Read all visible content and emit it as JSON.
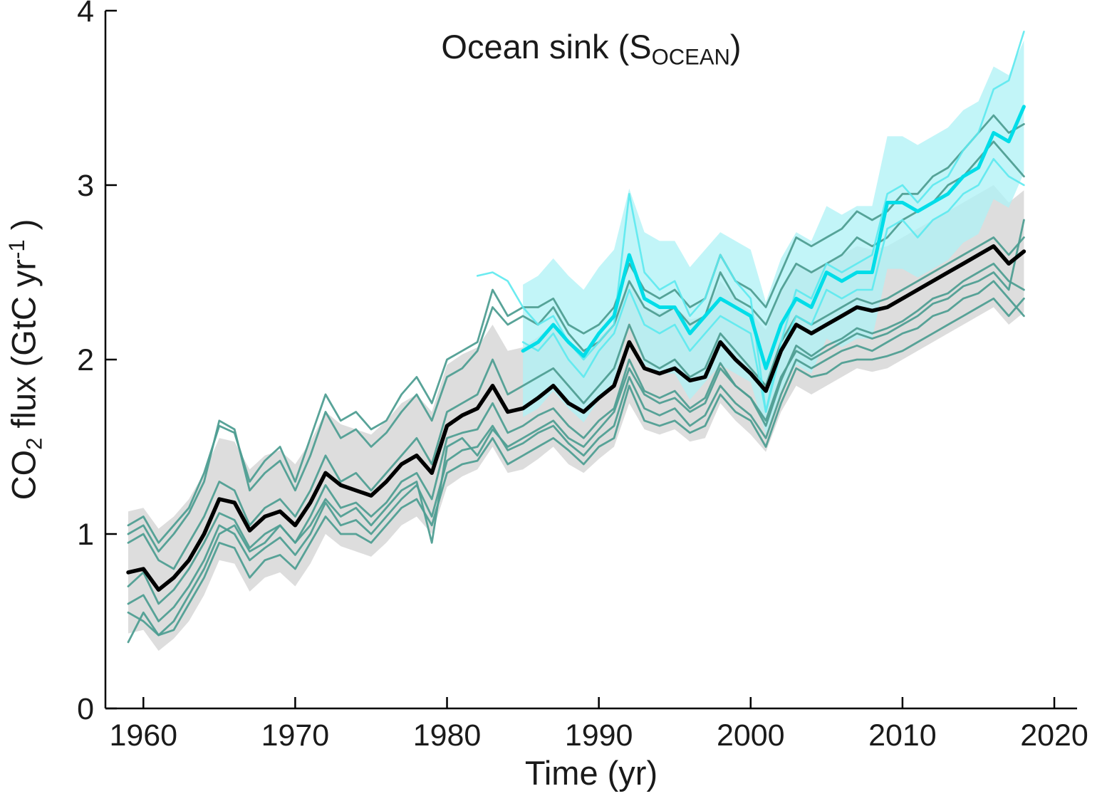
{
  "chart_data": {
    "type": "line",
    "title": {
      "pre": "Ocean sink (S",
      "sub": "OCEAN",
      "post": ")"
    },
    "xlabel": "Time (yr)",
    "ylabel": {
      "pre": "CO",
      "sub": "2",
      "mid": " flux (GtC yr",
      "sup": "-1",
      "post": " )"
    },
    "xlim": [
      1957.5,
      2021.5
    ],
    "ylim": [
      0,
      4
    ],
    "x_ticks": [
      1960,
      1970,
      1980,
      1990,
      2000,
      2010,
      2020
    ],
    "y_ticks": [
      0,
      1,
      2,
      3,
      4
    ],
    "grid": false,
    "legend": "none",
    "colors": {
      "model": "#4f9e92",
      "model_mean": "#000000",
      "model_band": "#d9d9d9",
      "product": "#5ce9ee",
      "product_mean": "#00dde8",
      "product_band": "#aef2f5"
    },
    "band_halfwidth_model": 0.35,
    "band_halfwidth_product": 0.38,
    "years": [
      1959,
      1960,
      1961,
      1962,
      1963,
      1964,
      1965,
      1966,
      1967,
      1968,
      1969,
      1970,
      1971,
      1972,
      1973,
      1974,
      1975,
      1976,
      1977,
      1978,
      1979,
      1980,
      1981,
      1982,
      1983,
      1984,
      1985,
      1986,
      1987,
      1988,
      1989,
      1990,
      1991,
      1992,
      1993,
      1994,
      1995,
      1996,
      1997,
      1998,
      1999,
      2000,
      2001,
      2002,
      2003,
      2004,
      2005,
      2006,
      2007,
      2008,
      2009,
      2010,
      2011,
      2012,
      2013,
      2014,
      2015,
      2016,
      2017,
      2018
    ],
    "model_mean": [
      0.78,
      0.8,
      0.68,
      0.75,
      0.85,
      1.0,
      1.2,
      1.18,
      1.02,
      1.1,
      1.13,
      1.05,
      1.18,
      1.35,
      1.28,
      1.25,
      1.22,
      1.3,
      1.4,
      1.45,
      1.35,
      1.62,
      1.68,
      1.72,
      1.85,
      1.7,
      1.72,
      1.78,
      1.85,
      1.75,
      1.7,
      1.78,
      1.85,
      2.1,
      1.95,
      1.92,
      1.95,
      1.88,
      1.9,
      2.1,
      2.0,
      1.92,
      1.82,
      2.05,
      2.2,
      2.15,
      2.2,
      2.25,
      2.3,
      2.28,
      2.3,
      2.35,
      2.4,
      2.45,
      2.5,
      2.55,
      2.6,
      2.65,
      2.55,
      2.62
    ],
    "models": [
      {
        "id": "model-1",
        "values": [
          1.05,
          1.1,
          0.95,
          1.05,
          1.15,
          1.35,
          1.62,
          1.58,
          1.3,
          1.42,
          1.5,
          1.3,
          1.55,
          1.8,
          1.65,
          1.7,
          1.6,
          1.65,
          1.8,
          1.9,
          1.75,
          2.0,
          2.05,
          2.1,
          2.4,
          2.25,
          2.3,
          2.3,
          2.35,
          2.2,
          2.15,
          2.2,
          2.3,
          2.55,
          2.4,
          2.35,
          2.4,
          2.3,
          2.35,
          2.6,
          2.45,
          2.4,
          2.3,
          2.5,
          2.7,
          2.65,
          2.7,
          2.75,
          2.85,
          2.8,
          2.85,
          2.95,
          2.95,
          3.05,
          3.1,
          3.2,
          3.3,
          3.4,
          3.3,
          3.35
        ]
      },
      {
        "id": "model-2",
        "values": [
          0.55,
          0.5,
          0.42,
          0.45,
          0.6,
          0.75,
          0.95,
          0.92,
          0.75,
          0.85,
          0.88,
          0.8,
          0.95,
          1.1,
          1.0,
          1.0,
          0.95,
          1.05,
          1.15,
          1.2,
          1.05,
          1.35,
          1.4,
          1.42,
          1.55,
          1.4,
          1.45,
          1.5,
          1.55,
          1.48,
          1.4,
          1.5,
          1.55,
          1.85,
          1.65,
          1.62,
          1.65,
          1.58,
          1.62,
          1.8,
          1.7,
          1.65,
          1.5,
          1.75,
          1.95,
          1.9,
          1.92,
          1.98,
          2.0,
          2.0,
          2.02,
          2.05,
          2.1,
          2.15,
          2.2,
          2.25,
          2.3,
          2.35,
          2.25,
          2.35
        ]
      },
      {
        "id": "model-3",
        "values": [
          0.38,
          0.55,
          0.42,
          0.5,
          0.65,
          0.8,
          1.0,
          1.05,
          0.9,
          0.95,
          1.05,
          0.95,
          1.05,
          1.2,
          1.1,
          1.15,
          1.05,
          1.15,
          1.25,
          1.3,
          0.95,
          1.5,
          1.55,
          1.45,
          1.6,
          1.5,
          1.55,
          1.6,
          1.65,
          1.55,
          1.5,
          1.6,
          1.7,
          1.95,
          1.8,
          1.75,
          1.78,
          1.7,
          1.75,
          1.95,
          1.85,
          1.78,
          1.65,
          1.9,
          2.05,
          2.0,
          2.05,
          2.1,
          2.15,
          2.12,
          2.15,
          2.2,
          2.25,
          2.32,
          2.35,
          2.42,
          2.45,
          2.5,
          2.4,
          2.8
        ]
      },
      {
        "id": "model-4",
        "values": [
          0.95,
          1.0,
          0.85,
          0.8,
          0.95,
          1.1,
          1.3,
          1.25,
          1.05,
          1.15,
          1.2,
          1.1,
          1.25,
          1.45,
          1.3,
          1.35,
          1.25,
          1.35,
          1.45,
          1.55,
          1.4,
          1.7,
          1.75,
          1.8,
          2.0,
          1.8,
          1.85,
          1.9,
          1.95,
          1.85,
          1.75,
          1.85,
          1.95,
          2.2,
          2.0,
          1.95,
          2.0,
          1.9,
          1.95,
          2.15,
          2.05,
          1.95,
          1.85,
          2.1,
          2.25,
          2.2,
          2.25,
          2.3,
          2.35,
          2.32,
          2.35,
          2.4,
          2.45,
          2.5,
          2.55,
          2.6,
          2.65,
          2.7,
          2.6,
          2.7
        ]
      },
      {
        "id": "model-5",
        "values": [
          0.6,
          0.65,
          0.5,
          0.58,
          0.7,
          0.85,
          1.05,
          1.0,
          0.85,
          0.92,
          0.98,
          0.88,
          1.0,
          1.18,
          1.05,
          1.08,
          1.0,
          1.1,
          1.2,
          1.28,
          1.1,
          1.42,
          1.48,
          1.5,
          1.62,
          1.48,
          1.52,
          1.58,
          1.62,
          1.52,
          1.45,
          1.55,
          1.62,
          1.9,
          1.72,
          1.68,
          1.72,
          1.62,
          1.68,
          1.85,
          1.75,
          1.68,
          1.55,
          1.8,
          2.0,
          1.95,
          2.0,
          2.05,
          2.08,
          2.05,
          2.1,
          2.15,
          2.18,
          2.25,
          2.28,
          2.35,
          2.38,
          2.45,
          2.35,
          2.25
        ]
      },
      {
        "id": "model-6",
        "values": [
          1.0,
          1.05,
          0.9,
          1.0,
          1.12,
          1.3,
          1.65,
          1.6,
          1.25,
          1.35,
          1.42,
          1.25,
          1.45,
          1.7,
          1.55,
          1.6,
          1.5,
          1.58,
          1.7,
          1.8,
          1.65,
          1.9,
          1.95,
          2.05,
          2.3,
          2.2,
          2.25,
          2.2,
          2.3,
          2.15,
          2.05,
          2.1,
          2.2,
          2.45,
          2.3,
          2.25,
          2.3,
          2.2,
          2.25,
          2.5,
          2.35,
          2.3,
          2.2,
          2.4,
          2.55,
          2.5,
          2.55,
          2.6,
          2.7,
          2.65,
          2.7,
          2.8,
          2.85,
          2.9,
          3.0,
          3.05,
          3.15,
          3.25,
          3.15,
          3.05
        ]
      },
      {
        "id": "model-7",
        "values": [
          0.7,
          0.78,
          0.6,
          0.68,
          0.8,
          0.95,
          1.12,
          1.08,
          0.92,
          1.0,
          1.05,
          0.95,
          1.1,
          1.28,
          1.15,
          1.18,
          1.1,
          1.18,
          1.3,
          1.35,
          1.2,
          1.55,
          1.58,
          1.6,
          1.75,
          1.58,
          1.62,
          1.68,
          1.72,
          1.62,
          1.55,
          1.65,
          1.72,
          2.0,
          1.82,
          1.78,
          1.82,
          1.72,
          1.78,
          1.98,
          1.85,
          1.78,
          1.62,
          1.88,
          2.08,
          2.02,
          2.08,
          2.12,
          2.18,
          2.15,
          2.18,
          2.22,
          2.28,
          2.35,
          2.38,
          2.45,
          2.5,
          2.55,
          2.45,
          2.4
        ]
      }
    ],
    "product_mean": [
      null,
      null,
      null,
      null,
      null,
      null,
      null,
      null,
      null,
      null,
      null,
      null,
      null,
      null,
      null,
      null,
      null,
      null,
      null,
      null,
      null,
      null,
      null,
      null,
      null,
      null,
      2.05,
      2.1,
      2.2,
      2.1,
      2.02,
      2.15,
      2.25,
      2.6,
      2.35,
      2.3,
      2.3,
      2.15,
      2.25,
      2.35,
      2.3,
      2.25,
      1.95,
      2.2,
      2.35,
      2.3,
      2.5,
      2.45,
      2.5,
      2.5,
      2.9,
      2.9,
      2.85,
      2.9,
      2.95,
      3.05,
      3.1,
      3.3,
      3.25,
      3.45
    ],
    "products": [
      {
        "id": "product-1",
        "values": [
          null,
          null,
          null,
          null,
          null,
          null,
          null,
          null,
          null,
          null,
          null,
          null,
          null,
          null,
          null,
          null,
          null,
          null,
          null,
          null,
          null,
          null,
          null,
          2.48,
          2.5,
          2.45,
          2.3,
          2.2,
          2.25,
          2.1,
          2.0,
          2.1,
          2.2,
          2.95,
          2.5,
          2.4,
          2.45,
          2.25,
          2.35,
          2.6,
          2.45,
          2.35,
          1.7,
          2.1,
          2.4,
          2.35,
          2.55,
          2.5,
          2.55,
          2.6,
          2.95,
          3.0,
          2.9,
          3.0,
          3.05,
          3.2,
          3.3,
          3.55,
          3.6,
          3.88
        ]
      },
      {
        "id": "product-2",
        "values": [
          null,
          null,
          null,
          null,
          null,
          null,
          null,
          null,
          null,
          null,
          null,
          null,
          null,
          null,
          null,
          null,
          null,
          null,
          null,
          null,
          null,
          null,
          null,
          null,
          null,
          null,
          2.1,
          2.05,
          2.15,
          2.0,
          1.9,
          2.05,
          2.15,
          2.4,
          2.2,
          2.15,
          2.2,
          2.05,
          2.15,
          2.25,
          2.2,
          2.15,
          1.7,
          2.05,
          2.25,
          2.2,
          2.4,
          2.35,
          2.4,
          2.4,
          2.75,
          2.8,
          2.7,
          2.8,
          2.85,
          2.95,
          3.0,
          3.15,
          3.05,
          3.0
        ]
      }
    ]
  }
}
